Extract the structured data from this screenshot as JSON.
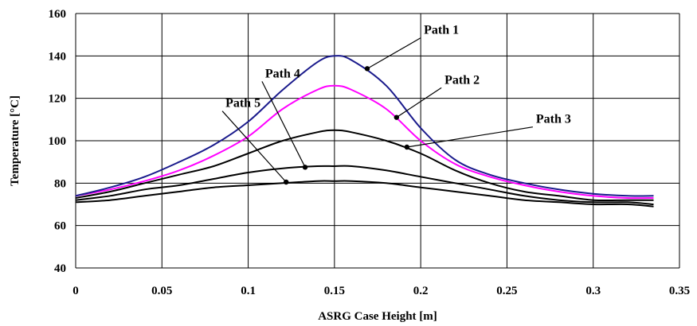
{
  "chart_data": {
    "type": "line",
    "title": "",
    "xlabel": "ASRG Case Height [m]",
    "ylabel": "Temperature [°C]",
    "xlim": [
      0,
      0.35
    ],
    "ylim": [
      40,
      160
    ],
    "x_ticks": [
      0,
      0.05,
      0.1,
      0.15,
      0.2,
      0.25,
      0.3,
      0.35
    ],
    "x_tick_labels": [
      "0",
      "0.05",
      "0.1",
      "0.15",
      "0.2",
      "0.25",
      "0.3",
      "0.35"
    ],
    "y_ticks": [
      40,
      60,
      80,
      100,
      120,
      140,
      160
    ],
    "y_tick_labels": [
      "40",
      "60",
      "80",
      "100",
      "120",
      "140",
      "160"
    ],
    "grid": true,
    "legend": "none",
    "series": [
      {
        "name": "Path 1",
        "color": "#1a1a8c",
        "x": [
          0,
          0.02,
          0.04,
          0.06,
          0.08,
          0.1,
          0.12,
          0.14,
          0.15,
          0.16,
          0.18,
          0.2,
          0.22,
          0.24,
          0.26,
          0.28,
          0.3,
          0.32,
          0.335
        ],
        "y": [
          74,
          78,
          83,
          90,
          98,
          109,
          124,
          137,
          140,
          138,
          126,
          106,
          91,
          84,
          80,
          77,
          75,
          74,
          74
        ]
      },
      {
        "name": "Path 2",
        "color": "#ff00ff",
        "x": [
          0,
          0.02,
          0.04,
          0.06,
          0.08,
          0.1,
          0.12,
          0.14,
          0.15,
          0.16,
          0.18,
          0.2,
          0.22,
          0.24,
          0.26,
          0.28,
          0.3,
          0.32,
          0.335
        ],
        "y": [
          74,
          77,
          81,
          86,
          93,
          102,
          115,
          124,
          126,
          124,
          115,
          100,
          89,
          83,
          79,
          76,
          74,
          73,
          73
        ]
      },
      {
        "name": "Path 3",
        "color": "#000000",
        "x": [
          0,
          0.02,
          0.04,
          0.06,
          0.08,
          0.1,
          0.12,
          0.14,
          0.15,
          0.16,
          0.18,
          0.2,
          0.22,
          0.24,
          0.26,
          0.28,
          0.3,
          0.32,
          0.335
        ],
        "y": [
          73,
          76,
          80,
          84,
          88,
          94,
          100,
          104,
          105,
          104,
          100,
          94,
          86,
          80,
          76,
          74,
          72,
          72,
          72
        ]
      },
      {
        "name": "Path 4",
        "color": "#000000",
        "x": [
          0,
          0.02,
          0.04,
          0.06,
          0.08,
          0.1,
          0.12,
          0.14,
          0.15,
          0.16,
          0.18,
          0.2,
          0.22,
          0.24,
          0.26,
          0.28,
          0.3,
          0.32,
          0.335
        ],
        "y": [
          72,
          74,
          77,
          79,
          82,
          85,
          87,
          88,
          88,
          88,
          86,
          83,
          80,
          77,
          74,
          72,
          71,
          71,
          70
        ]
      },
      {
        "name": "Path 5",
        "color": "#000000",
        "x": [
          0,
          0.02,
          0.04,
          0.06,
          0.08,
          0.1,
          0.12,
          0.14,
          0.15,
          0.16,
          0.18,
          0.2,
          0.22,
          0.24,
          0.26,
          0.28,
          0.3,
          0.32,
          0.335
        ],
        "y": [
          71,
          72,
          74,
          76,
          78,
          79,
          80,
          81,
          81,
          81,
          80,
          78,
          76,
          74,
          72,
          71,
          70,
          70,
          69
        ]
      }
    ],
    "annotations": [
      {
        "text": "Path 1",
        "series": "Path 1",
        "label_x": 0.2,
        "label_y": 148.5,
        "point_x": 0.169,
        "point_y": 134
      },
      {
        "text": "Path 2",
        "series": "Path 2",
        "label_x": 0.212,
        "label_y": 125,
        "point_x": 0.186,
        "point_y": 111
      },
      {
        "text": "Path 3",
        "series": "Path 3",
        "label_x": 0.265,
        "label_y": 106.5,
        "point_x": 0.192,
        "point_y": 97
      },
      {
        "text": "Path 4",
        "series": "Path 4",
        "label_x": 0.108,
        "label_y": 128,
        "point_x": 0.133,
        "point_y": 87.5
      },
      {
        "text": "Path 5",
        "series": "Path 5",
        "label_x": 0.085,
        "label_y": 114,
        "point_x": 0.122,
        "point_y": 80.5
      }
    ]
  }
}
